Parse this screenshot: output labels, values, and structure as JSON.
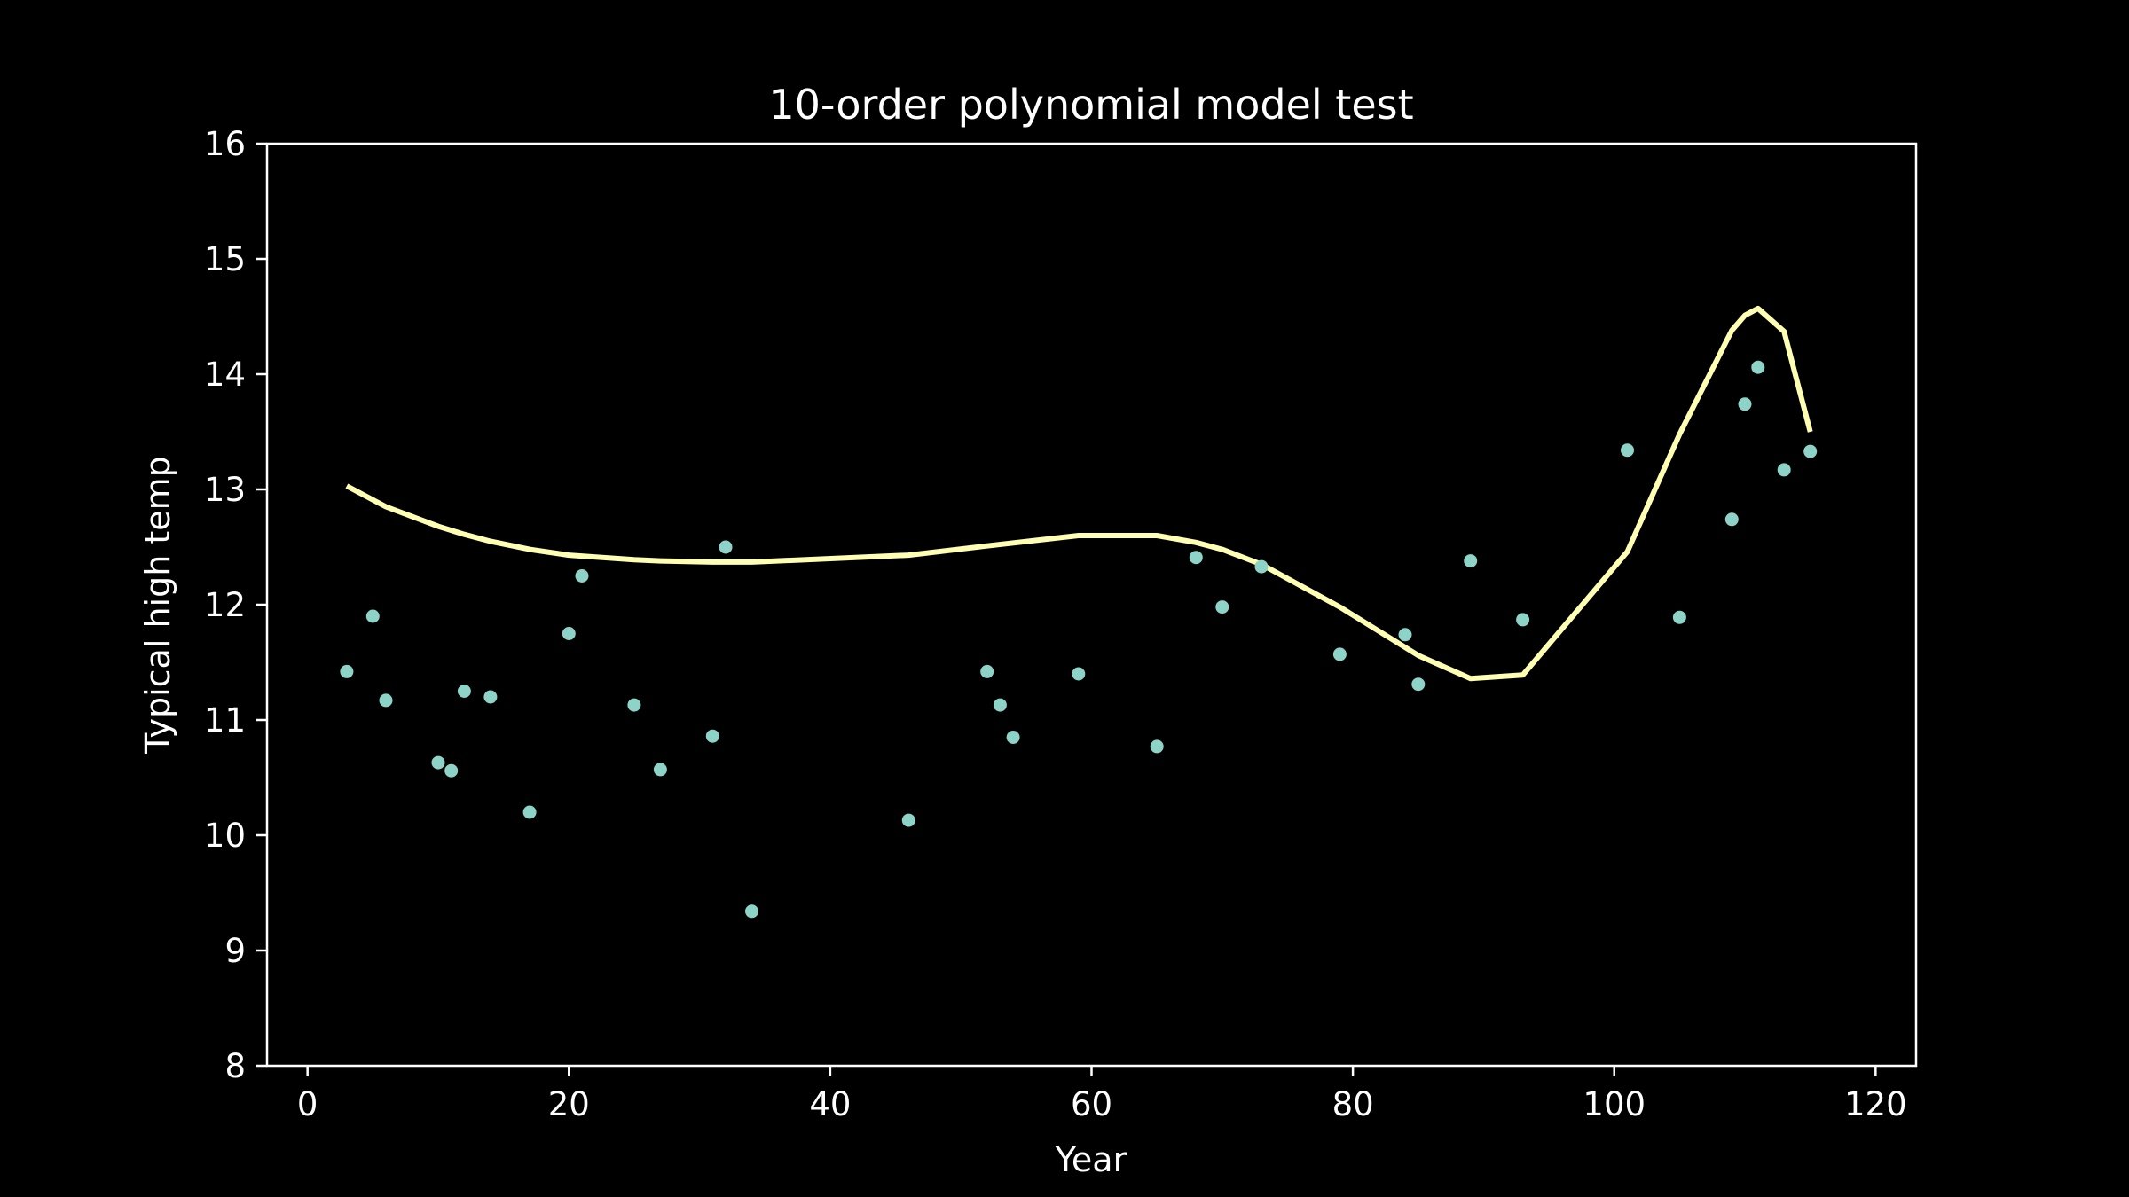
{
  "chart_data": {
    "type": "scatter",
    "title": "10-order polynomial model test",
    "xlabel": "Year",
    "ylabel": "Typical high temp",
    "xlim": [
      -3.1,
      123.1
    ],
    "ylim": [
      8,
      16
    ],
    "xticks": [
      0,
      20,
      40,
      60,
      80,
      100,
      120
    ],
    "yticks": [
      8,
      9,
      10,
      11,
      12,
      13,
      14,
      15,
      16
    ],
    "grid": false,
    "background": "#000000",
    "axis_color": "#ffffff",
    "series": [
      {
        "kind": "points",
        "color": "#8dd3c7",
        "x": [
          3,
          5,
          6,
          10,
          11,
          12,
          14,
          17,
          20,
          21,
          25,
          27,
          31,
          32,
          34,
          46,
          52,
          53,
          54,
          59,
          65,
          68,
          70,
          73,
          79,
          84,
          85,
          89,
          93,
          101,
          105,
          109,
          110,
          111,
          113,
          115
        ],
        "y": [
          11.42,
          11.9,
          11.17,
          10.63,
          10.56,
          11.25,
          11.2,
          10.2,
          11.75,
          12.25,
          11.13,
          10.57,
          10.86,
          12.5,
          9.34,
          10.13,
          11.42,
          11.13,
          10.85,
          11.4,
          10.77,
          12.41,
          11.98,
          12.33,
          11.57,
          11.74,
          11.31,
          12.38,
          11.87,
          13.34,
          11.89,
          12.74,
          13.74,
          14.06,
          13.17,
          13.33
        ]
      },
      {
        "kind": "line",
        "color": "#ffffb3",
        "x": [
          3,
          6,
          10,
          12,
          14,
          17,
          20,
          25,
          27,
          31,
          34,
          46,
          52,
          59,
          65,
          68,
          70,
          73,
          79,
          84,
          85,
          89,
          93,
          101,
          105,
          109,
          110,
          111,
          113,
          115
        ],
        "y": [
          13.03,
          12.85,
          12.68,
          12.61,
          12.55,
          12.48,
          12.43,
          12.39,
          12.38,
          12.37,
          12.37,
          12.43,
          12.51,
          12.6,
          12.6,
          12.54,
          12.48,
          12.35,
          11.98,
          11.63,
          11.56,
          11.36,
          11.39,
          12.46,
          13.48,
          14.38,
          14.51,
          14.57,
          14.37,
          13.5
        ]
      }
    ]
  }
}
